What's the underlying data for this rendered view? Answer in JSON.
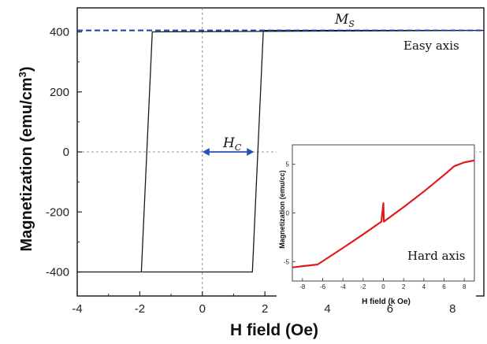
{
  "chart_data": [
    {
      "type": "line",
      "xlabel": "H field (Oe)",
      "ylabel": "Magnetization (emu/cm",
      "ylabel_sup": "3",
      "ylabel_close": ")",
      "xlim": [
        -4,
        9
      ],
      "ylim": [
        -480,
        480
      ],
      "xticks": [
        -4,
        -2,
        0,
        2,
        4,
        6,
        8
      ],
      "yticks": [
        -400,
        -200,
        0,
        200,
        400
      ],
      "grid": false,
      "series": [
        {
          "name": "Easy axis",
          "color": "#1a1a1a",
          "x": [
            -4,
            -1.95,
            -1.6,
            9,
            9,
            1.95,
            1.6,
            -4
          ],
          "y": [
            -400,
            -400,
            400,
            405,
            405,
            405,
            -400,
            -400
          ]
        }
      ],
      "annotations": {
        "ms_label": "M",
        "ms_sub": "S",
        "ms_value": 405,
        "ms_color": "#1a3fa8",
        "hc_label": "H",
        "hc_sub": "C",
        "hc_from": 0,
        "hc_to": 1.65,
        "hc_color": "#2a4fbf",
        "easy_label": "Easy axis"
      }
    },
    {
      "type": "line",
      "xlabel": "H field (k Oe)",
      "ylabel": "Magnetization (emu/cc)",
      "xlim": [
        -9,
        9
      ],
      "ylim": [
        -7,
        7
      ],
      "xticks": [
        -8,
        -6,
        -4,
        -2,
        0,
        2,
        4,
        6,
        8
      ],
      "yticks": [
        -5,
        0,
        5
      ],
      "series": [
        {
          "name": "Hard axis",
          "color": "#e41a1a",
          "x": [
            -9,
            -6.5,
            -4,
            -2,
            -0.2,
            0,
            0.05,
            0.3,
            2,
            4,
            6,
            7,
            8,
            9
          ],
          "y": [
            -5.6,
            -5.3,
            -3.6,
            -2.2,
            -0.9,
            1.0,
            -0.9,
            -0.7,
            0.6,
            2.2,
            3.9,
            4.8,
            5.2,
            5.4
          ]
        }
      ],
      "label": "Hard axis",
      "label_color": "#e41a1a"
    }
  ]
}
